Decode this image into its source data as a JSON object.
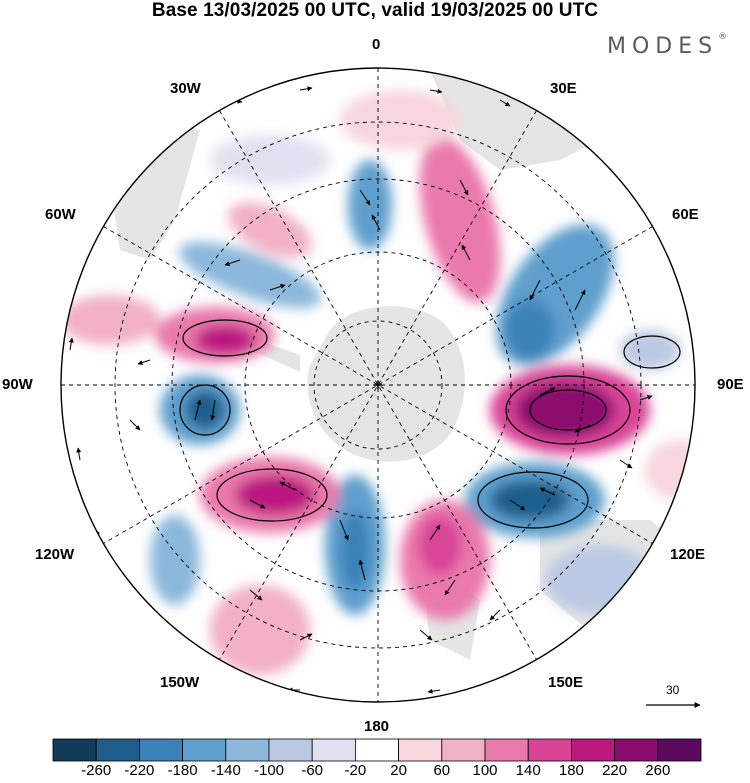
{
  "title": "Base 13/03/2025 00 UTC, valid 19/03/2025 00 UTC",
  "brand": {
    "name": "MODES",
    "mark": "®"
  },
  "longitude_labels": {
    "lon_0": "0",
    "lon_30e": "30E",
    "lon_60e": "60E",
    "lon_90e": "90E",
    "lon_120e": "120E",
    "lon_150e": "150E",
    "lon_180": "180",
    "lon_150w": "150W",
    "lon_120w": "120W",
    "lon_90w": "90W",
    "lon_60w": "60W",
    "lon_30w": "30W"
  },
  "reference_vector": {
    "label": "30"
  },
  "colorbar": {
    "labels": [
      "-260",
      "-220",
      "-180",
      "-140",
      "-100",
      "-60",
      "-20",
      "20",
      "60",
      "100",
      "140",
      "180",
      "220",
      "260"
    ],
    "colors": [
      "#123a5a",
      "#1f5e8c",
      "#3b82b8",
      "#5e9fcd",
      "#8cb8dc",
      "#bcc9e4",
      "#e3e1f1",
      "#ffffff",
      "#f8d6dd",
      "#f2b1c4",
      "#ea79ac",
      "#d94497",
      "#bb1880",
      "#8b0a6e",
      "#5c085e"
    ]
  },
  "map": {
    "projection": "south polar stereographic",
    "field": "anomaly shading with wind vectors",
    "land_color": "#e6e6e6"
  }
}
